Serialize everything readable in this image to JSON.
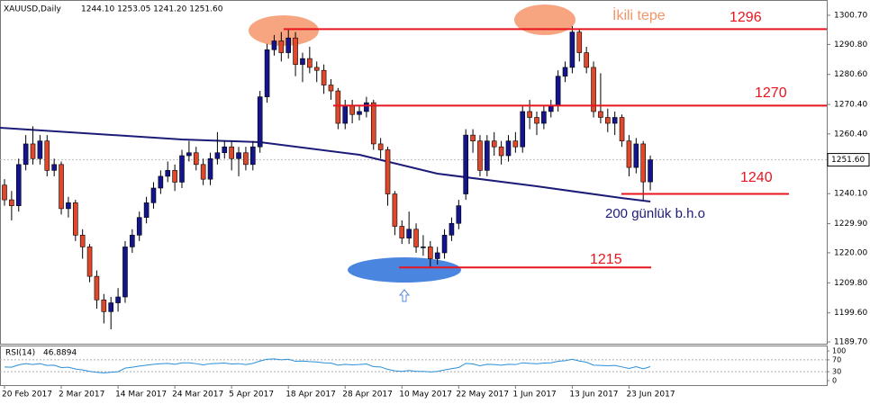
{
  "chart_data": {
    "type": "candlestick",
    "symbol": "XAUUSD,Daily",
    "ohlc_label": "1244.10 1253.05 1241.20 1251.60",
    "x": [
      "20 Feb 2017",
      null,
      null,
      null,
      null,
      null,
      null,
      null,
      "2 Mar 2017",
      null,
      null,
      null,
      null,
      null,
      null,
      null,
      "14 Mar 2017",
      null,
      null,
      null,
      null,
      null,
      null,
      null,
      "24 Mar 2017",
      null,
      null,
      null,
      null,
      null,
      null,
      null,
      "5 Apr 2017",
      null,
      null,
      null,
      null,
      null,
      null,
      null,
      "18 Apr 2017",
      null,
      null,
      null,
      null,
      null,
      null,
      null,
      "28 Apr 2017",
      null,
      null,
      null,
      null,
      null,
      null,
      null,
      "10 May 2017",
      null,
      null,
      null,
      null,
      null,
      null,
      null,
      "22 May 2017",
      null,
      null,
      null,
      null,
      null,
      null,
      null,
      "1 Jun 2017",
      null,
      null,
      null,
      null,
      null,
      null,
      null,
      "13 Jun 2017",
      null,
      null,
      null,
      null,
      null,
      null,
      null,
      "23 Jun 2017",
      null,
      null,
      null
    ],
    "open": [
      1243,
      1238,
      1236,
      1250,
      1257,
      1252,
      1258,
      1248,
      1250,
      1235,
      1237,
      1226,
      1222,
      1212,
      1204,
      1200,
      1203,
      1205,
      1222,
      1226,
      1232,
      1237,
      1242,
      1246,
      1248,
      1244,
      1253,
      1254,
      1250,
      1245,
      1252,
      1254,
      1256,
      1252,
      1254,
      1250,
      1256,
      1273,
      1289,
      1292,
      1288,
      1293,
      1284,
      1286,
      1283,
      1282,
      1277,
      1275,
      1264,
      1270,
      1267,
      1268,
      1271,
      1257,
      1255,
      1240,
      1229,
      1225,
      1228,
      1222,
      1222,
      1218,
      1220,
      1226,
      1230,
      1240,
      1260,
      1258,
      1248,
      1258,
      1256,
      1253,
      1258,
      1256,
      1268,
      1266,
      1264,
      1268,
      1270,
      1280,
      1283,
      1295,
      1288,
      1283,
      1268,
      1266,
      1264,
      1266,
      1258,
      1249,
      1257,
      1244.1
    ],
    "high": [
      1245,
      1241,
      1252,
      1260,
      1263,
      1260,
      1260,
      1252,
      1251,
      1239,
      1238,
      1228,
      1223,
      1214,
      1206,
      1205,
      1208,
      1224,
      1228,
      1234,
      1239,
      1244,
      1248,
      1251,
      1250,
      1255,
      1258,
      1256,
      1252,
      1254,
      1261,
      1258,
      1258,
      1256,
      1256,
      1258,
      1275,
      1291,
      1294,
      1295,
      1296,
      1295,
      1288,
      1290,
      1285,
      1284,
      1279,
      1276,
      1272,
      1272,
      1270,
      1273,
      1272,
      1259,
      1256,
      1241,
      1231,
      1234,
      1230,
      1226,
      1224,
      1222,
      1228,
      1232,
      1238,
      1262,
      1262,
      1260,
      1260,
      1261,
      1258,
      1260,
      1261,
      1270,
      1272,
      1268,
      1270,
      1272,
      1282,
      1285,
      1297,
      1296,
      1290,
      1285,
      1281,
      1269,
      1268,
      1267,
      1260,
      1259,
      1258,
      1253.05
    ],
    "low": [
      1236,
      1231,
      1234,
      1248,
      1250,
      1250,
      1246,
      1246,
      1233,
      1232,
      1224,
      1218,
      1210,
      1201,
      1196,
      1194,
      1200,
      1203,
      1220,
      1224,
      1230,
      1235,
      1240,
      1244,
      1241,
      1242,
      1251,
      1248,
      1243,
      1243,
      1250,
      1252,
      1248,
      1246,
      1248,
      1248,
      1254,
      1271,
      1287,
      1285,
      1286,
      1280,
      1278,
      1281,
      1278,
      1274,
      1272,
      1262,
      1262,
      1264,
      1265,
      1266,
      1255,
      1252,
      1236,
      1226,
      1223,
      1223,
      1220,
      1219,
      1215,
      1216,
      1218,
      1224,
      1228,
      1238,
      1254,
      1246,
      1246,
      1253,
      1250,
      1251,
      1254,
      1254,
      1262,
      1260,
      1262,
      1266,
      1268,
      1278,
      1281,
      1285,
      1281,
      1266,
      1264,
      1261,
      1260,
      1256,
      1246,
      1247,
      1238,
      1241.2
    ],
    "close": [
      1238,
      1236,
      1250,
      1257,
      1252,
      1258,
      1248,
      1250,
      1235,
      1237,
      1226,
      1222,
      1212,
      1204,
      1200,
      1203,
      1205,
      1222,
      1226,
      1232,
      1237,
      1242,
      1246,
      1248,
      1244,
      1253,
      1254,
      1250,
      1245,
      1252,
      1254,
      1256,
      1252,
      1254,
      1250,
      1256,
      1273,
      1289,
      1292,
      1288,
      1293,
      1284,
      1286,
      1283,
      1282,
      1277,
      1275,
      1264,
      1270,
      1267,
      1268,
      1271,
      1257,
      1255,
      1240,
      1229,
      1225,
      1228,
      1222,
      1222,
      1218,
      1220,
      1226,
      1230,
      1236,
      1260,
      1258,
      1248,
      1258,
      1256,
      1253,
      1258,
      1256,
      1268,
      1266,
      1264,
      1268,
      1270,
      1280,
      1283,
      1295,
      1288,
      1283,
      1268,
      1266,
      1264,
      1266,
      1258,
      1249,
      1257,
      1244.1,
      1251.6
    ],
    "up_color": "#14148c",
    "down_color": "#e0482c",
    "ma": {
      "color": "#1c1c78",
      "x": [
        0,
        25,
        36,
        50,
        61,
        75,
        87,
        91
      ],
      "values": [
        1262.5,
        1258.5,
        1257.6,
        1253.3,
        1246.9,
        1242.6,
        1238.6,
        1237.4
      ],
      "label": "200 günlük b.h.o"
    },
    "levels": [
      1296,
      1270,
      1240,
      1215
    ],
    "level_color": "#e8141e",
    "annotation": "İkili tepe",
    "current_price": {
      "value": 1251.6,
      "label": "1251.60"
    },
    "ylim": [
      1188.8,
      1305.9
    ],
    "yticks": [
      {
        "value": 1300.7,
        "label": "1300.70"
      },
      {
        "value": 1290.8,
        "label": "1290.80"
      },
      {
        "value": 1280.6,
        "label": "1280.60"
      },
      {
        "value": 1270.4,
        "label": "1270.40"
      },
      {
        "value": 1260.4,
        "label": "1260.40"
      },
      {
        "value": 1240.1,
        "label": "1240.10"
      },
      {
        "value": 1229.9,
        "label": "1229.90"
      },
      {
        "value": 1220,
        "label": "1220.00"
      },
      {
        "value": 1209.8,
        "label": "1209.80"
      },
      {
        "value": 1199.6,
        "label": "1199.60"
      },
      {
        "value": 1189.7,
        "label": "1189.70"
      }
    ],
    "rsi": {
      "name": "RSI(14)",
      "color": "#2a8fd8",
      "ylim": [
        0,
        100
      ],
      "yticks": [
        100,
        70,
        30,
        0
      ],
      "values": [
        46,
        45,
        53,
        57,
        54,
        57,
        51,
        52,
        44,
        45,
        39,
        36,
        31,
        28,
        26,
        28,
        30,
        42,
        45,
        49,
        52,
        55,
        57,
        58,
        55,
        60,
        60,
        57,
        53,
        57,
        58,
        59,
        56,
        57,
        54,
        58,
        66,
        72,
        73,
        70,
        72,
        65,
        66,
        64,
        63,
        60,
        59,
        52,
        55,
        53,
        54,
        56,
        47,
        46,
        38,
        33,
        31,
        34,
        31,
        31,
        29,
        31,
        36,
        40,
        44,
        58,
        56,
        50,
        55,
        54,
        52,
        55,
        54,
        60,
        58,
        57,
        59,
        60,
        65,
        67,
        72,
        66,
        62,
        52,
        51,
        50,
        51,
        46,
        41,
        47,
        40,
        46.8894
      ]
    }
  }
}
